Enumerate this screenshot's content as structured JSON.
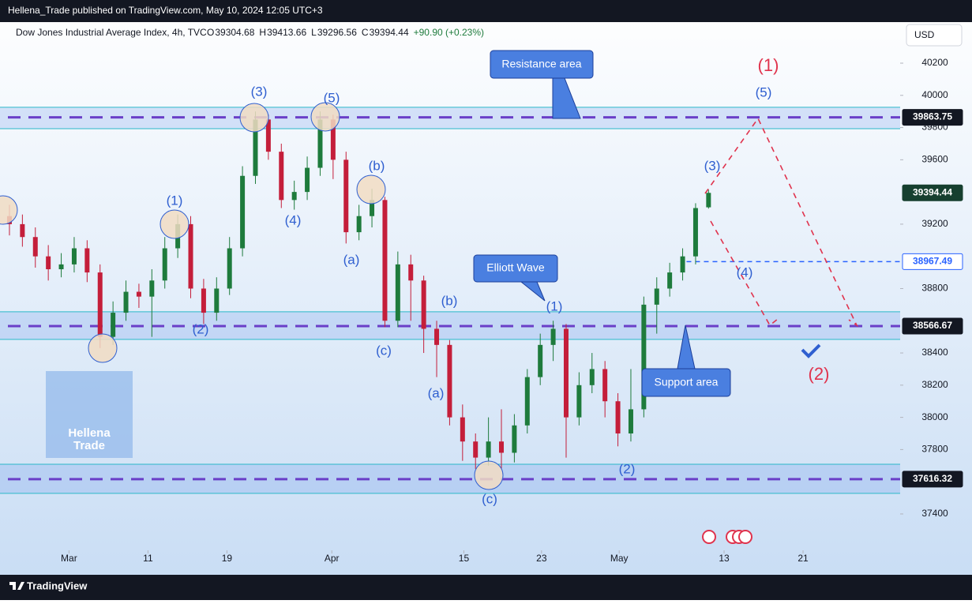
{
  "header": {
    "text": "Hellena_Trade published on TradingView.com, May 10, 2024 12:05 UTC+3"
  },
  "chart_data": {
    "type": "candlestick",
    "legend": {
      "name": "Dow Jones Industrial Average Index, 4h, TVC",
      "items": [
        {
          "label": "O",
          "value": 39304.68
        },
        {
          "label": "H",
          "value": 39413.66
        },
        {
          "label": "L",
          "value": 39296.56
        },
        {
          "label": "C",
          "value": 39394.44
        }
      ],
      "change": "+90.90 (+0.23%)"
    },
    "currency": "USD",
    "x": [
      0,
      1,
      2,
      3,
      4,
      5,
      6,
      7,
      8,
      9,
      10,
      11,
      12,
      13,
      14,
      15,
      16,
      17,
      18,
      19,
      20,
      21,
      22,
      23,
      24,
      25,
      26,
      27,
      28,
      29,
      30,
      31,
      32,
      33,
      34,
      35,
      36,
      37,
      38,
      39,
      40,
      41,
      42,
      43,
      44,
      45,
      46,
      47,
      48,
      49,
      50,
      51,
      52,
      53,
      54
    ],
    "series": {
      "open": [
        39250,
        39200,
        39120,
        39000,
        38920,
        38950,
        39050,
        38900,
        38500,
        38650,
        38780,
        38750,
        38850,
        39050,
        39200,
        38800,
        38650,
        38800,
        39050,
        39500,
        39850,
        39650,
        39350,
        39400,
        39550,
        39850,
        39600,
        39150,
        39250,
        39350,
        38600,
        38950,
        38850,
        38550,
        38450,
        38000,
        37850,
        37750,
        37850,
        37780,
        37950,
        38250,
        38450,
        38550,
        38000,
        38200,
        38300,
        38100,
        37900,
        38050,
        38700,
        38800,
        38900,
        39000,
        39304.68
      ],
      "high": [
        39320,
        39260,
        39180,
        39070,
        39020,
        39120,
        39100,
        38950,
        38720,
        38850,
        38830,
        38920,
        39120,
        39260,
        39250,
        38860,
        38870,
        39120,
        39560,
        39900,
        39880,
        39700,
        39470,
        39620,
        39900,
        39880,
        39650,
        39320,
        39420,
        39370,
        39030,
        39010,
        38880,
        38600,
        38480,
        38080,
        37900,
        38000,
        38050,
        38020,
        38300,
        38520,
        38600,
        38580,
        38280,
        38400,
        38350,
        38150,
        38300,
        38750,
        38870,
        38960,
        39050,
        39330,
        39413.66
      ],
      "low": [
        39130,
        39060,
        38930,
        38850,
        38870,
        38900,
        38840,
        38430,
        38450,
        38600,
        38680,
        38500,
        38800,
        38990,
        38740,
        38580,
        38600,
        38760,
        39000,
        39450,
        39600,
        39300,
        39290,
        39350,
        39500,
        39480,
        39080,
        39100,
        39180,
        38560,
        38560,
        38600,
        38400,
        38250,
        37950,
        37730,
        37680,
        37700,
        37680,
        37720,
        37900,
        38200,
        38350,
        37750,
        37950,
        38150,
        38000,
        37820,
        37850,
        38000,
        38520,
        38750,
        38850,
        38950,
        39296.56
      ],
      "close": [
        39200,
        39120,
        39000,
        38920,
        38950,
        39050,
        38900,
        38500,
        38650,
        38780,
        38750,
        38850,
        39050,
        39200,
        38800,
        38650,
        38800,
        39050,
        39500,
        39850,
        39650,
        39350,
        39400,
        39550,
        39850,
        39600,
        39150,
        39250,
        39350,
        38600,
        38950,
        38850,
        38550,
        38450,
        38000,
        37850,
        37750,
        37850,
        37780,
        37950,
        38250,
        38450,
        38550,
        38000,
        38200,
        38300,
        38100,
        37900,
        38050,
        38700,
        38800,
        38900,
        39000,
        39300,
        39394.44
      ]
    },
    "up_color": "#1e7b3c",
    "down_color": "#c41e3a",
    "xlim": [
      -0.73,
      68.8
    ],
    "xticks": [
      {
        "value": 4.6,
        "label": "Mar"
      },
      {
        "value": 10.7,
        "label": "11"
      },
      {
        "value": 16.8,
        "label": "19"
      },
      {
        "value": 24.9,
        "label": "Apr"
      },
      {
        "value": 35.1,
        "label": "15"
      },
      {
        "value": 41.1,
        "label": "23"
      },
      {
        "value": 47.1,
        "label": "May"
      },
      {
        "value": 55.2,
        "label": "13"
      },
      {
        "value": 61.3,
        "label": "21"
      }
    ],
    "ylim": [
      37184,
      40455
    ],
    "yticks": [
      37400,
      37800,
      38000,
      38200,
      38400,
      38800,
      39200,
      39600,
      39800,
      40000,
      40200
    ],
    "zones": [
      [
        39793,
        39926
      ],
      [
        38484,
        38656
      ],
      [
        37528,
        37709
      ]
    ],
    "levels": [
      {
        "value": 39863.75,
        "style": "dark"
      },
      {
        "value": 38967.49,
        "style": "outline"
      },
      {
        "value": 38566.67,
        "style": "dark"
      },
      {
        "value": 37616.32,
        "style": "dark"
      }
    ],
    "annotations": [
      {
        "text": "(1)",
        "color": "#2f5fd0"
      },
      {
        "text": "(2)",
        "color": "#2f5fd0"
      },
      {
        "text": "(3)",
        "color": "#2f5fd0"
      },
      {
        "text": "(4)",
        "color": "#2f5fd0"
      },
      {
        "text": "(5)",
        "color": "#2f5fd0"
      },
      {
        "text": "(b)",
        "color": "#2f5fd0"
      },
      {
        "text": "(a)",
        "color": "#2f5fd0"
      },
      {
        "text": "(c)",
        "color": "#2f5fd0"
      },
      {
        "text": "(b)",
        "color": "#2f5fd0"
      },
      {
        "text": "(a)",
        "color": "#2f5fd0"
      },
      {
        "text": "(c)",
        "color": "#2f5fd0"
      },
      {
        "text": "(1)",
        "color": "#2f5fd0"
      },
      {
        "text": "(2)",
        "color": "#2f5fd0"
      },
      {
        "text": "(3)",
        "color": "#2f5fd0"
      },
      {
        "text": "(4)",
        "color": "#2f5fd0"
      },
      {
        "text": "(5)",
        "color": "#2f5fd0"
      },
      {
        "text": "(1)",
        "color": "#e0334d"
      },
      {
        "text": "(2)",
        "color": "#e0334d"
      }
    ],
    "callouts": [
      "Resistance area",
      "Elliott Wave",
      "Support area"
    ]
  },
  "logo": {
    "line1": "Hellena",
    "line2": "Trade"
  },
  "footer": {
    "text": "TradingView"
  }
}
